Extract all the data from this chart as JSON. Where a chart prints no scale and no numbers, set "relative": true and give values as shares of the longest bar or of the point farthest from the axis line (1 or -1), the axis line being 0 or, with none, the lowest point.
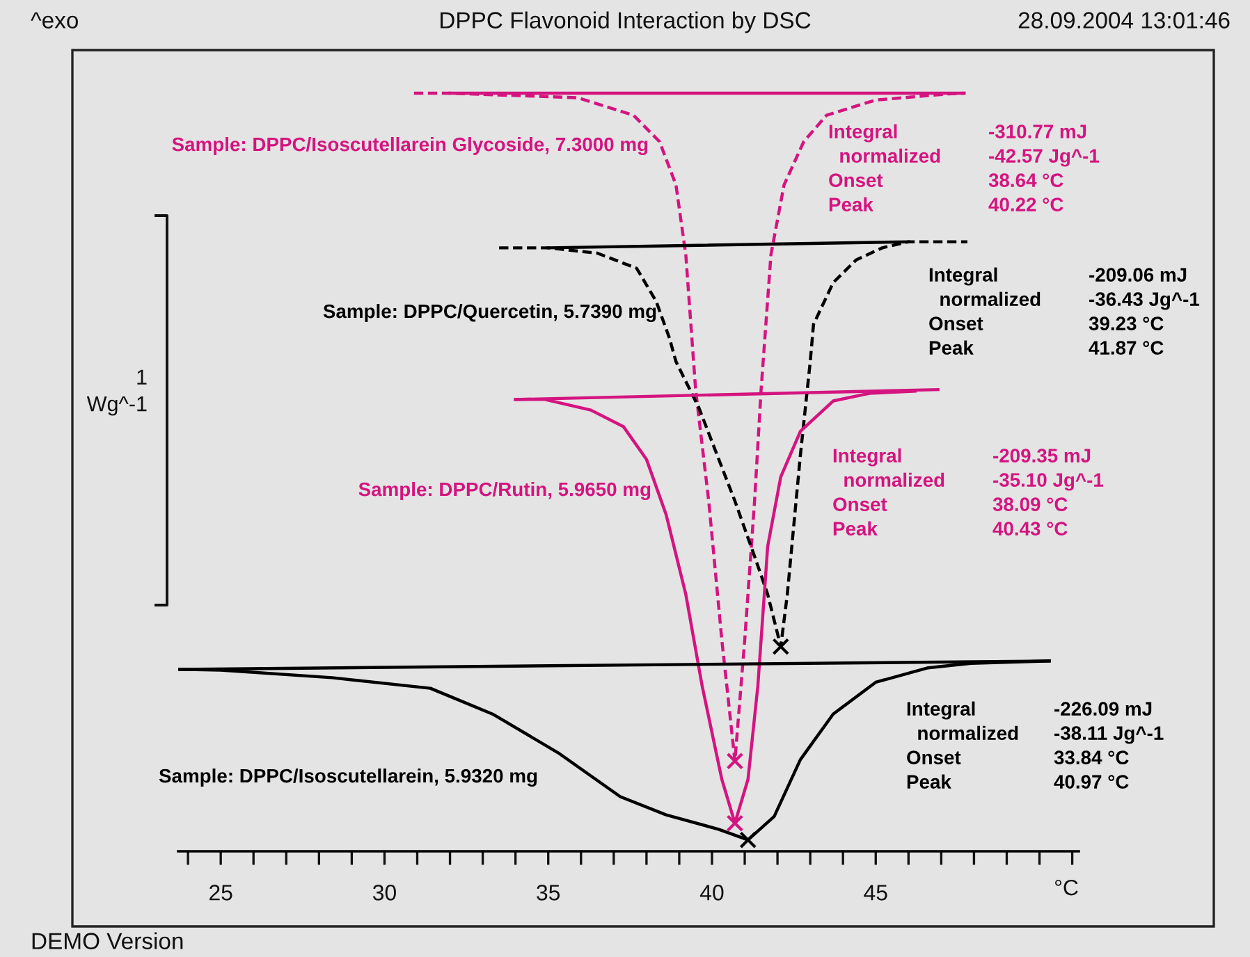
{
  "chart_data": {
    "type": "line",
    "title": "DPPC Flavonoid Interaction by DSC",
    "xlabel": "°C",
    "relative": true,
    "xlim": [
      23.7,
      51.2
    ],
    "xticks": [
      {
        "value": 24,
        "label": null
      },
      25,
      {
        "value": 26,
        "label": null
      },
      {
        "value": 27,
        "label": null
      },
      {
        "value": 28,
        "label": null
      },
      {
        "value": 29,
        "label": null
      },
      30,
      {
        "value": 31,
        "label": null
      },
      {
        "value": 32,
        "label": null
      },
      {
        "value": 33,
        "label": null
      },
      {
        "value": 34,
        "label": null
      },
      35,
      {
        "value": 36,
        "label": null
      },
      {
        "value": 37,
        "label": null
      },
      {
        "value": 38,
        "label": null
      },
      {
        "value": 39,
        "label": null
      },
      40,
      {
        "value": 41,
        "label": null
      },
      {
        "value": 42,
        "label": null
      },
      {
        "value": 43,
        "label": null
      },
      {
        "value": 44,
        "label": null
      },
      45,
      {
        "value": 46,
        "label": null
      },
      {
        "value": 47,
        "label": null
      },
      {
        "value": 48,
        "label": null
      },
      {
        "value": 49,
        "label": null
      },
      {
        "value": 50,
        "label": null
      },
      {
        "value": 51,
        "label": null
      }
    ],
    "annotations": [
      "^exo",
      "28.09.2004 13:01:46",
      "DEMO Version",
      "1\nWg^-1",
      "Integral\n  normalized\nOnset\nPeak",
      "-310.77 mJ\n-42.57 Jg^-1\n38.64 °C\n40.22 °C",
      "Integral\n  normalized\nOnset\nPeak",
      "-209.06 mJ\n-36.43 Jg^-1\n39.23 °C\n41.87 °C",
      "Integral\n  normalized\nOnset\nPeak",
      "-209.35 mJ\n-35.10 Jg^-1\n38.09 °C\n40.43 °C",
      "Integral\n  normalized\nOnset\nPeak",
      "-226.09 mJ\n-38.11 Jg^-1\n33.84 °C\n40.97 °C"
    ],
    "series": [
      {
        "name": "Sample: DPPC/Isoscutellarein Glycoside, 7.3000 mg",
        "type": "line",
        "color": "#d4147f",
        "line_style": "dashed",
        "marker": "none",
        "x": [
          30.9,
          32.0,
          35.9,
          37.6,
          38.4,
          38.9,
          39.2,
          39.5,
          39.9,
          40.3,
          40.7,
          41.0,
          41.3,
          41.5,
          41.8,
          42.2,
          42.8,
          43.5,
          45.0,
          47.2,
          47.7
        ],
        "values": [
          1.0,
          1.0,
          0.994,
          0.971,
          0.936,
          0.879,
          0.787,
          0.609,
          0.462,
          0.279,
          0.119,
          0.279,
          0.462,
          0.609,
          0.787,
          0.879,
          0.936,
          0.971,
          0.991,
          0.999,
          1.0
        ]
      },
      {
        "type": "line",
        "color": "#d4147f",
        "line_style": "solid",
        "marker": "none",
        "x": [
          32.0,
          47.7
        ],
        "values": [
          1.0,
          1.0
        ]
      },
      {
        "type": "scatter",
        "color": "#d4147f",
        "marker": "cross",
        "x": [
          40.7
        ],
        "values": [
          0.119
        ]
      },
      {
        "name": "Sample: DPPC/Quercetin, 5.7390 mg",
        "type": "line",
        "color": "#000000",
        "line_style": "dashed",
        "marker": "none",
        "x": [
          33.5,
          35.0,
          36.5,
          37.7,
          38.3,
          38.7,
          38.9,
          39.6,
          40.7,
          41.3,
          41.7,
          42.1,
          42.3,
          42.7,
          43.0,
          43.1,
          43.7,
          44.4,
          45.2,
          46.0,
          47.8
        ],
        "values": [
          0.796,
          0.796,
          0.789,
          0.769,
          0.725,
          0.677,
          0.646,
          0.585,
          0.462,
          0.389,
          0.339,
          0.27,
          0.339,
          0.523,
          0.646,
          0.695,
          0.75,
          0.78,
          0.796,
          0.804,
          0.804
        ]
      },
      {
        "type": "line",
        "color": "#000000",
        "line_style": "solid",
        "marker": "none",
        "x": [
          35.0,
          46.0
        ],
        "values": [
          0.796,
          0.804
        ]
      },
      {
        "type": "scatter",
        "color": "#000000",
        "marker": "cross",
        "x": [
          42.1
        ],
        "values": [
          0.27
        ]
      },
      {
        "name": "Sample: DPPC/Rutin, 5.9650 mg",
        "type": "line",
        "color": "#d4147f",
        "line_style": "solid",
        "marker": "none",
        "x": [
          34.0,
          34.9,
          36.3,
          37.3,
          38.0,
          38.6,
          39.2,
          39.7,
          40.3,
          40.7,
          41.1,
          41.4,
          41.7,
          42.1,
          42.7,
          43.7,
          44.8,
          46.2
        ],
        "values": [
          0.596,
          0.596,
          0.582,
          0.56,
          0.517,
          0.444,
          0.339,
          0.218,
          0.095,
          0.037,
          0.095,
          0.218,
          0.402,
          0.494,
          0.554,
          0.594,
          0.604,
          0.607
        ]
      },
      {
        "type": "line",
        "color": "#d4147f",
        "line_style": "solid",
        "marker": "none",
        "x": [
          34.0,
          46.9
        ],
        "values": [
          0.596,
          0.609
        ]
      },
      {
        "type": "scatter",
        "color": "#d4147f",
        "marker": "cross",
        "x": [
          40.7
        ],
        "values": [
          0.037
        ]
      },
      {
        "name": "Sample: DPPC/Isoscutellarein, 5.9320 mg",
        "type": "line",
        "color": "#000000",
        "line_style": "solid",
        "marker": "none",
        "x": [
          23.75,
          25.0,
          28.4,
          31.4,
          33.3,
          35.3,
          37.2,
          38.6,
          40.2,
          41.1,
          41.9,
          42.7,
          43.7,
          45.0,
          46.6,
          47.9,
          50.3
        ],
        "values": [
          0.24,
          0.239,
          0.229,
          0.215,
          0.181,
          0.13,
          0.072,
          0.048,
          0.029,
          0.015,
          0.046,
          0.121,
          0.181,
          0.223,
          0.242,
          0.248,
          0.251
        ]
      },
      {
        "type": "line",
        "color": "#000000",
        "line_style": "solid",
        "marker": "none",
        "x": [
          23.75,
          50.3
        ],
        "values": [
          0.24,
          0.251
        ]
      },
      {
        "type": "scatter",
        "color": "#000000",
        "marker": "cross",
        "x": [
          41.1
        ],
        "values": [
          0.015
        ]
      }
    ]
  }
}
